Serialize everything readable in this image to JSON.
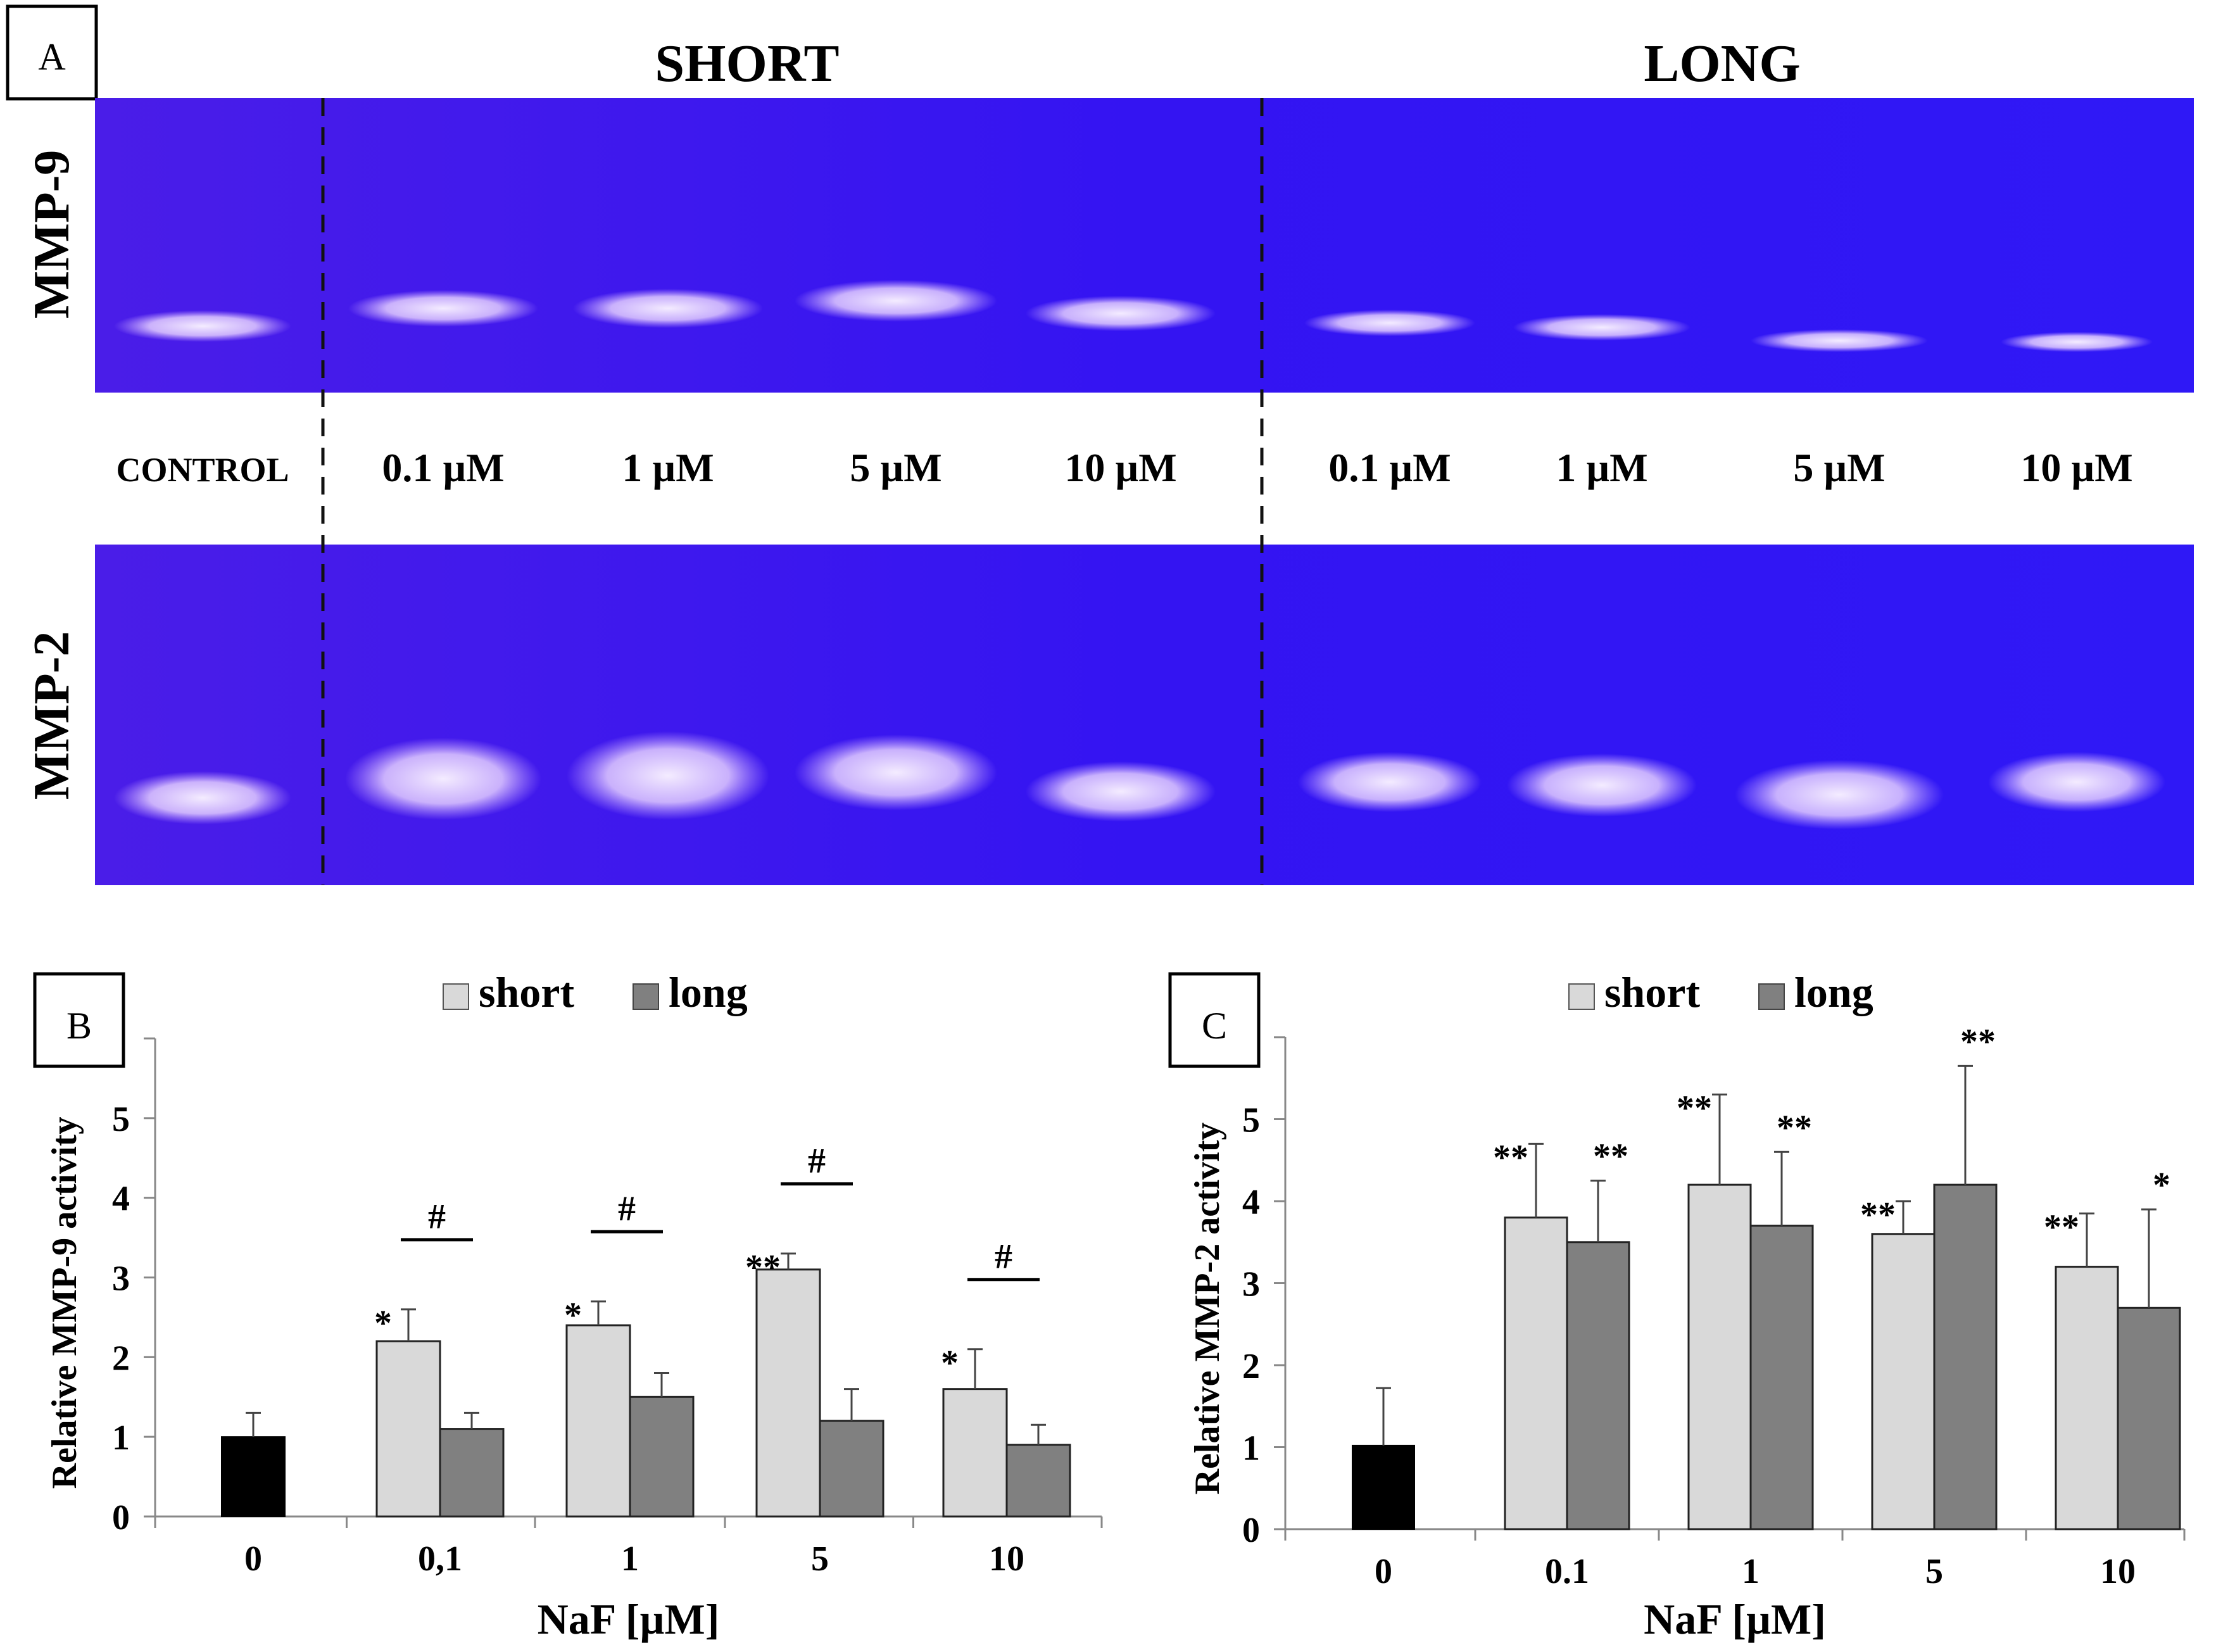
{
  "panel_a": {
    "label": "A",
    "headers": [
      "SHORT",
      "LONG"
    ],
    "row_labels": [
      "MMP-9",
      "MMP-2"
    ],
    "lanes": [
      "CONTROL",
      "0.1 µM",
      "1 µM",
      "5 µM",
      "10 µM",
      "0.1 µM",
      "1 µM",
      "5 µM",
      "10 µM"
    ],
    "gel_color": "#3a16f0",
    "band_color": "#e8d8ff"
  },
  "colors": {
    "control": "#000000",
    "short": "#d9d9d9",
    "long": "#808080"
  },
  "chart_data": [
    {
      "type": "bar",
      "panel": "B",
      "ylabel": "Relative MMP-9  activity",
      "xlabel": "NaF [µM]",
      "ylim": [
        0,
        6
      ],
      "yticks": [
        "0",
        "1",
        "2",
        "3",
        "4",
        "5"
      ],
      "legend": [
        "short",
        "long"
      ],
      "legend_position": "top-center",
      "grid": false,
      "categories": [
        "0",
        "0,1",
        "1",
        "5",
        "10"
      ],
      "control": {
        "value": 1.0,
        "error": 0.3
      },
      "series": [
        {
          "name": "short",
          "values": [
            null,
            2.2,
            2.4,
            3.1,
            1.6
          ],
          "errors": [
            null,
            0.4,
            0.3,
            0.2,
            0.5
          ],
          "marks": [
            "",
            "*",
            "*",
            "**",
            "*"
          ]
        },
        {
          "name": "long",
          "values": [
            null,
            1.1,
            1.5,
            1.2,
            0.9
          ],
          "errors": [
            null,
            0.2,
            0.3,
            0.4,
            0.25
          ],
          "marks": [
            "",
            "",
            "",
            "",
            ""
          ]
        }
      ],
      "hash_marks": [
        "",
        "#",
        "#",
        "#",
        "#"
      ]
    },
    {
      "type": "bar",
      "panel": "C",
      "ylabel": "Relative MMP-2  activity",
      "xlabel": "NaF [µM]",
      "ylim": [
        0,
        6
      ],
      "yticks": [
        "0",
        "1",
        "2",
        "3",
        "4",
        "5"
      ],
      "legend": [
        "short",
        "long"
      ],
      "legend_position": "top-center",
      "grid": false,
      "categories": [
        "0",
        "0.1",
        "1",
        "5",
        "10"
      ],
      "control": {
        "value": 1.02,
        "error": 0.7
      },
      "series": [
        {
          "name": "short",
          "values": [
            null,
            3.8,
            4.2,
            3.6,
            3.2
          ],
          "errors": [
            null,
            0.9,
            1.1,
            0.4,
            0.65
          ],
          "marks": [
            "",
            "**",
            "**",
            "**",
            "**"
          ]
        },
        {
          "name": "long",
          "values": [
            null,
            3.5,
            3.7,
            4.2,
            2.7
          ],
          "errors": [
            null,
            0.75,
            0.9,
            1.45,
            1.2
          ],
          "marks": [
            "",
            "**",
            "**",
            "**",
            "*"
          ]
        }
      ],
      "hash_marks": [
        "",
        "",
        "",
        "",
        ""
      ]
    }
  ]
}
